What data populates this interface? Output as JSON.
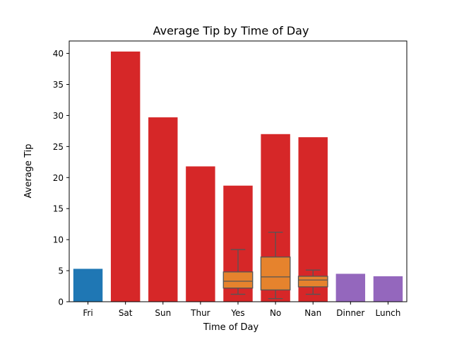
{
  "chart_data": {
    "type": "bar",
    "title": "Average Tip by Time of Day",
    "xlabel": "Time of Day",
    "ylabel": "Average Tip",
    "ylim": [
      0,
      42
    ],
    "yticks": [
      0,
      5,
      10,
      15,
      20,
      25,
      30,
      35,
      40
    ],
    "grid": false,
    "categories": [
      "Fri",
      "Sat",
      "Sun",
      "Thur",
      "Yes",
      "No",
      "Nan",
      "Dinner",
      "Lunch"
    ],
    "bars": [
      {
        "category": "Fri",
        "value": 5.3,
        "color": "#1f77b4"
      },
      {
        "category": "Sat",
        "value": 40.3,
        "color": "#d62728"
      },
      {
        "category": "Sun",
        "value": 29.7,
        "color": "#d62728"
      },
      {
        "category": "Thur",
        "value": 21.8,
        "color": "#d62728"
      },
      {
        "category": "Yes",
        "value": 18.7,
        "color": "#d62728"
      },
      {
        "category": "No",
        "value": 27.0,
        "color": "#d62728"
      },
      {
        "category": "Nan",
        "value": 26.5,
        "color": "#d62728"
      },
      {
        "category": "Dinner",
        "value": 4.5,
        "color": "#9467bd"
      },
      {
        "category": "Lunch",
        "value": 4.1,
        "color": "#9467bd"
      }
    ],
    "boxplots": [
      {
        "category": "Yes",
        "whisker_low": 1.2,
        "q1": 2.2,
        "median": 3.3,
        "q3": 4.8,
        "whisker_high": 8.4,
        "color": "#e6832d"
      },
      {
        "category": "No",
        "whisker_low": 0.5,
        "q1": 1.9,
        "median": 4.0,
        "q3": 7.2,
        "whisker_high": 11.2,
        "color": "#e6832d"
      },
      {
        "category": "Nan",
        "whisker_low": 1.2,
        "q1": 2.4,
        "median": 3.5,
        "q3": 4.1,
        "whisker_high": 5.1,
        "color": "#e6832d"
      }
    ]
  }
}
